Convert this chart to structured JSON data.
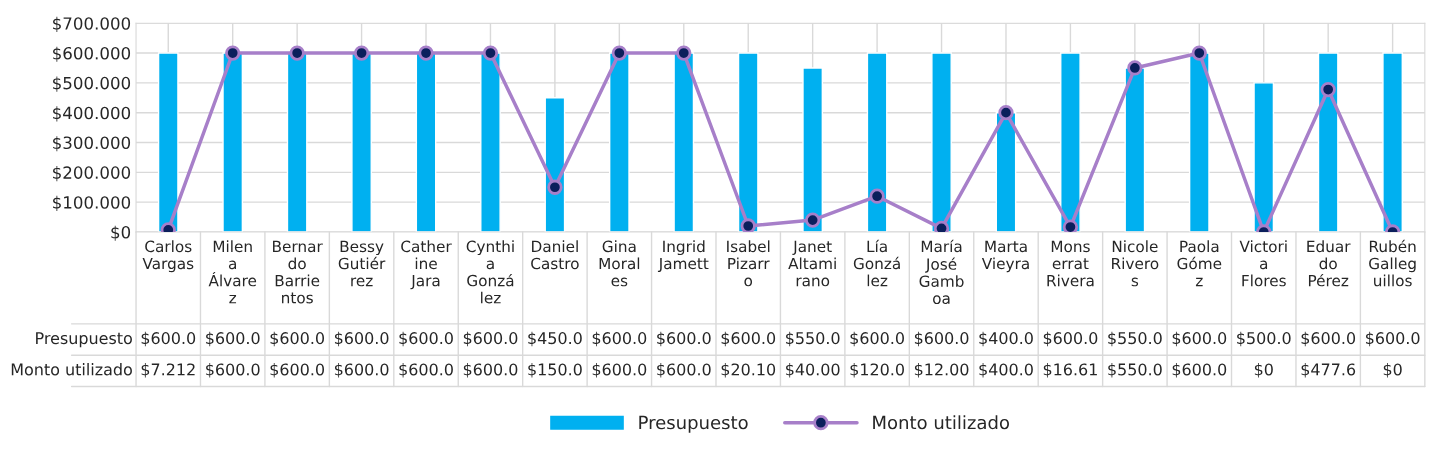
{
  "chart_data": {
    "type": "bar",
    "categories": [
      "Carlos\nVargas",
      "Milen\na\nÁlvare\nz",
      "Bernar\ndo\nBarrie\nntos",
      "Bessy\nGutiér\nrez",
      "Cather\nine\nJara",
      "Cynthi\na\nGonzá\nlez",
      "Daniel\nCastro",
      "Gina\nMoral\nes",
      "Ingrid\nJamett",
      "Isabel\nPizarr\no",
      "Janet\nAltami\nrano",
      "Lía\nGonzá\nlez",
      "María\nJosé\nGamb\noa",
      "Marta\nVieyra",
      "Mons\nerrat\nRivera",
      "Nicole\nRivero\ns",
      "Paola\nGóme\nz",
      "Victori\na\nFlores",
      "Eduar\ndo\nPérez",
      "Rubén\nGalleg\nuillos"
    ],
    "series": [
      {
        "name": "Presupuesto",
        "color": "#00b0f0",
        "values": [
          600.0,
          600.0,
          600.0,
          600.0,
          600.0,
          600.0,
          450.0,
          600.0,
          600.0,
          600.0,
          550.0,
          600.0,
          600.0,
          400.0,
          600.0,
          550.0,
          600.0,
          500.0,
          600.0,
          600.0
        ],
        "value_labels": [
          "$600.0",
          "$600.0",
          "$600.0",
          "$600.0",
          "$600.0",
          "$600.0",
          "$450.0",
          "$600.0",
          "$600.0",
          "$600.0",
          "$550.0",
          "$600.0",
          "$600.0",
          "$400.0",
          "$600.0",
          "$550.0",
          "$600.0",
          "$500.0",
          "$600.0",
          "$600.0"
        ]
      },
      {
        "name": "Monto utilizado",
        "type": "line",
        "color": "#a77fc9",
        "marker": "circle",
        "values": [
          7.212,
          600.0,
          600.0,
          600.0,
          600.0,
          600.0,
          150.0,
          600.0,
          600.0,
          20.1,
          40.0,
          120.0,
          12.0,
          400.0,
          16.61,
          550.0,
          600.0,
          0,
          477.6,
          0
        ],
        "value_labels": [
          "$7.212",
          "$600.0",
          "$600.0",
          "$600.0",
          "$600.0",
          "$600.0",
          "$150.0",
          "$600.0",
          "$600.0",
          "$20.10",
          "$40.00",
          "$120.0",
          "$12.00",
          "$400.0",
          "$16.61",
          "$550.0",
          "$600.0",
          "$0",
          "$477.6",
          "$0"
        ]
      }
    ],
    "ylim": [
      0,
      700
    ],
    "yticks": [
      {
        "value": 0,
        "label": "$0"
      },
      {
        "value": 100,
        "label": "$100.000"
      },
      {
        "value": 200,
        "label": "$200.000"
      },
      {
        "value": 300,
        "label": "$300.000"
      },
      {
        "value": 400,
        "label": "$400.000"
      },
      {
        "value": 500,
        "label": "$500.000"
      },
      {
        "value": 600,
        "label": "$600.000"
      },
      {
        "value": 700,
        "label": "$700.000"
      }
    ],
    "grid": true,
    "legend": "bottom"
  }
}
